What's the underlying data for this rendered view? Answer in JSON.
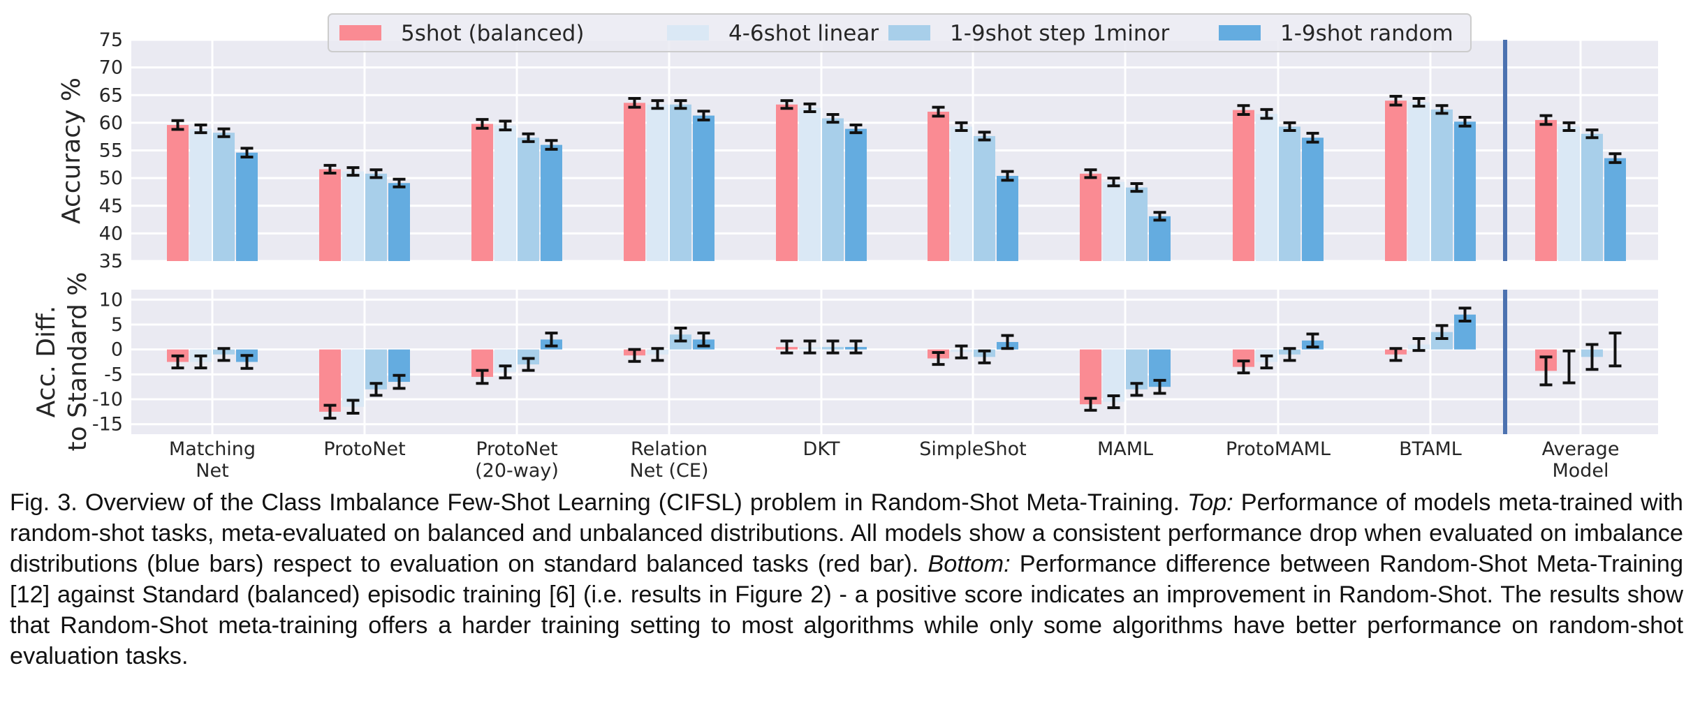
{
  "chart_data": [
    {
      "type": "bar",
      "panel": "top",
      "ylabel": "Accuracy %",
      "ylim": [
        35,
        75
      ],
      "yticks": [
        35,
        40,
        45,
        50,
        55,
        60,
        65,
        70,
        75
      ],
      "grid": true,
      "legend_position": "top-center",
      "categories": [
        [
          "Matching",
          "Net"
        ],
        [
          "ProtoNet"
        ],
        [
          "ProtoNet",
          "(20-way)"
        ],
        [
          "Relation",
          "Net (CE)"
        ],
        [
          "DKT"
        ],
        [
          "SimpleShot"
        ],
        [
          "MAML"
        ],
        [
          "ProtoMAML"
        ],
        [
          "BTAML"
        ],
        [
          "Average",
          "Model"
        ]
      ],
      "series": [
        {
          "name": "5shot (balanced)",
          "color": "#fa8b93",
          "values": [
            59.6,
            51.6,
            59.8,
            63.6,
            63.3,
            62.0,
            50.8,
            62.3,
            64.0,
            60.5
          ],
          "errors": [
            0.8,
            0.7,
            0.8,
            0.8,
            0.7,
            0.8,
            0.7,
            0.8,
            0.8,
            0.8
          ]
        },
        {
          "name": "4-6shot linear",
          "color": "#dae8f5",
          "values": [
            58.9,
            51.2,
            59.5,
            63.3,
            62.7,
            59.3,
            49.3,
            61.6,
            63.7,
            59.3
          ],
          "errors": [
            0.7,
            0.7,
            0.8,
            0.7,
            0.7,
            0.7,
            0.7,
            0.8,
            0.7,
            0.7
          ]
        },
        {
          "name": "1-9shot step 1minor",
          "color": "#a8cfea",
          "values": [
            58.2,
            50.8,
            57.3,
            63.3,
            60.8,
            57.6,
            48.3,
            59.3,
            62.4,
            58.0
          ],
          "errors": [
            0.7,
            0.7,
            0.7,
            0.7,
            0.7,
            0.7,
            0.7,
            0.7,
            0.7,
            0.7
          ]
        },
        {
          "name": "1-9shot random",
          "color": "#64ace0",
          "values": [
            54.6,
            49.1,
            56.0,
            61.3,
            58.9,
            50.4,
            43.1,
            57.3,
            60.2,
            53.6
          ],
          "errors": [
            0.8,
            0.7,
            0.8,
            0.8,
            0.7,
            0.8,
            0.7,
            0.8,
            0.8,
            0.8
          ]
        }
      ],
      "divider_after_category": 9
    },
    {
      "type": "bar",
      "panel": "bottom",
      "ylabel_lines": [
        "Acc. Diff.",
        "to Standard %"
      ],
      "ylim": [
        -17,
        12
      ],
      "yticks": [
        -15,
        -10,
        -5,
        0,
        5,
        10
      ],
      "grid": true,
      "series": [
        {
          "name": "5shot (balanced)",
          "color": "#fa8b93",
          "values": [
            -2.5,
            -12.5,
            -5.5,
            -1.2,
            0.5,
            -1.8,
            -11.0,
            -3.5,
            -1.0,
            -4.3
          ],
          "errors": [
            1.2,
            1.3,
            1.3,
            1.2,
            1.2,
            1.2,
            1.2,
            1.2,
            1.2,
            2.8
          ]
        },
        {
          "name": "4-6shot linear",
          "color": "#dae8f5",
          "values": [
            -2.5,
            -11.5,
            -4.5,
            -1.0,
            0.5,
            -0.5,
            -10.5,
            -2.5,
            1.0,
            -3.5
          ],
          "errors": [
            1.2,
            1.3,
            1.2,
            1.2,
            1.2,
            1.2,
            1.2,
            1.2,
            1.2,
            3.2
          ]
        },
        {
          "name": "1-9shot step 1minor",
          "color": "#a8cfea",
          "values": [
            -1.0,
            -8.0,
            -3.0,
            3.0,
            0.5,
            -1.5,
            -8.0,
            -1.0,
            3.5,
            -1.5
          ],
          "errors": [
            1.2,
            1.2,
            1.2,
            1.3,
            1.2,
            1.2,
            1.2,
            1.2,
            1.3,
            2.5
          ]
        },
        {
          "name": "1-9shot random",
          "color": "#64ace0",
          "values": [
            -2.5,
            -6.5,
            2.0,
            2.0,
            0.5,
            1.5,
            -7.5,
            1.8,
            7.0,
            0.0
          ],
          "errors": [
            1.3,
            1.3,
            1.3,
            1.3,
            1.2,
            1.3,
            1.3,
            1.3,
            1.3,
            3.3
          ]
        }
      ]
    }
  ],
  "caption": {
    "fig_label": "Fig. 3. Overview of the Class Imbalance Few-Shot Learning (CIFSL) problem in Random-Shot Meta-Training.",
    "top_label": "Top:",
    "top_text": "Performance of models meta-trained with random-shot tasks, meta-evaluated on balanced and unbalanced distributions. All models show a consistent performance drop when evaluated on imbalance distributions (blue bars) respect to evaluation on standard balanced tasks (red bar).",
    "bottom_label": "Bottom:",
    "bottom_text": "Performance difference between Random-Shot Meta-Training [12] against Standard (balanced) episodic training [6] (i.e. results in Figure 2) - a positive score indicates an improvement in Random-Shot. The results show that Random-Shot meta-training offers a harder training setting to most algorithms while only some algorithms have better performance on random-shot evaluation tasks."
  }
}
